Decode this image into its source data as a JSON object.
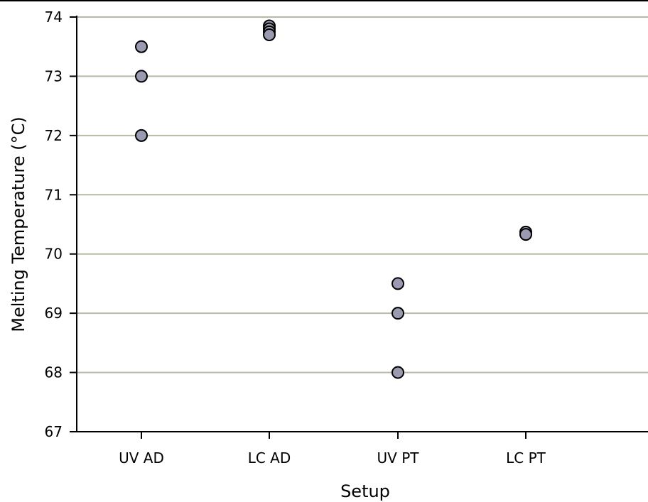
{
  "chart_data": {
    "type": "scatter",
    "title": "",
    "xlabel": "Setup",
    "ylabel": "Melting Temperature (°C)",
    "categories": [
      "UV AD",
      "LC AD",
      "UV PT",
      "LC PT"
    ],
    "ylim": [
      67,
      74
    ],
    "yticks": [
      67,
      68,
      69,
      70,
      71,
      72,
      73,
      74
    ],
    "grid": true,
    "points": [
      {
        "category": "UV AD",
        "values": [
          73.5,
          73.0,
          72.0
        ]
      },
      {
        "category": "LC AD",
        "values": [
          73.85,
          73.8,
          73.75,
          73.7
        ]
      },
      {
        "category": "UV PT",
        "values": [
          69.5,
          69.0,
          68.0
        ]
      },
      {
        "category": "LC PT",
        "values": [
          70.37,
          70.33
        ]
      }
    ],
    "colors": {
      "marker_fill": "#9a9ab0",
      "marker_edge": "#000000",
      "grid": "#b9b9a6"
    }
  }
}
